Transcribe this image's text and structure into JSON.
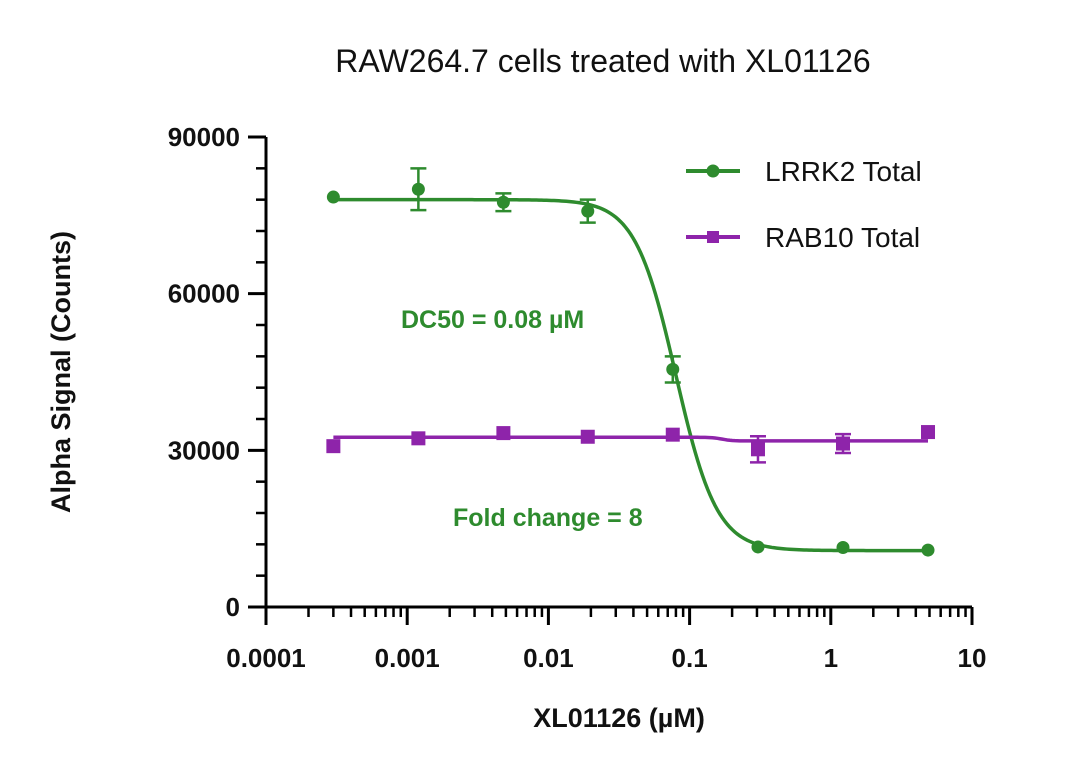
{
  "chart_data": {
    "type": "scatter",
    "title": "RAW264.7 cells treated with XL01126",
    "xlabel": "XL01126 (µM)",
    "ylabel": "Alpha Signal (Counts)",
    "xscale": "log",
    "xlim": [
      0.0001,
      10
    ],
    "ylim": [
      0,
      90000
    ],
    "x_ticks": [
      0.0001,
      0.001,
      0.01,
      0.1,
      1,
      10
    ],
    "x_tick_labels": [
      "0.0001",
      "0.001",
      "0.01",
      "0.1",
      "1",
      "10"
    ],
    "y_ticks": [
      0,
      30000,
      60000,
      90000
    ],
    "y_tick_labels": [
      "0",
      "30000",
      "60000",
      "90000"
    ],
    "grid": false,
    "legend_position": "top-right",
    "series": [
      {
        "name": "LRRK2 Total",
        "color": "#2e8b2e",
        "marker": "circle",
        "x": [
          0.0003,
          0.0012,
          0.0048,
          0.019,
          0.076,
          0.305,
          1.22,
          4.88
        ],
        "y": [
          78500,
          80000,
          77500,
          75800,
          45500,
          11500,
          11400,
          10900
        ],
        "error": [
          0,
          4000,
          1700,
          2200,
          2500,
          0,
          0,
          0
        ],
        "fit": {
          "top": 78000,
          "bottom": 10800,
          "ic50": 0.08,
          "hill": 3.0
        }
      },
      {
        "name": "RAB10 Total",
        "color": "#8e24aa",
        "marker": "square",
        "x": [
          0.0003,
          0.0012,
          0.0048,
          0.019,
          0.076,
          0.305,
          1.22,
          4.88
        ],
        "y": [
          30800,
          32300,
          33300,
          32600,
          33000,
          30200,
          31300,
          33500
        ],
        "error": [
          0,
          0,
          0,
          0,
          0,
          2500,
          1800,
          0
        ],
        "fit": {
          "top": 32500,
          "bottom": 31800,
          "ic50": 0.17,
          "hill": 12
        }
      }
    ],
    "annotations": [
      {
        "text": "DC50 = 0.08 µM",
        "color": "#2e8b2e"
      },
      {
        "text": "Fold change = 8",
        "color": "#2e8b2e"
      }
    ]
  }
}
